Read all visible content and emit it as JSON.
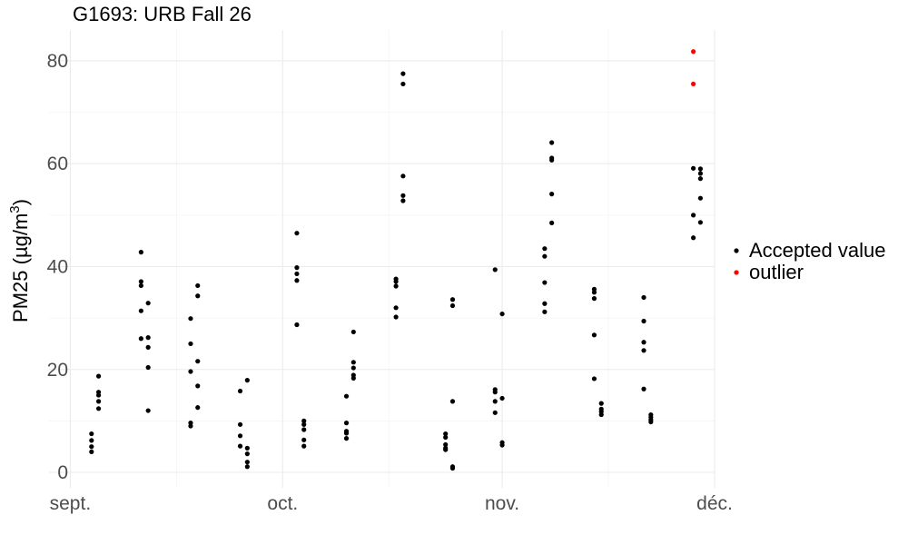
{
  "chart_data": {
    "type": "scatter",
    "title": "G1693: URB Fall 26",
    "ylabel": "PM25",
    "ylabel_unit": "(µg/m",
    "ylabel_unit_sup": "3",
    "ylabel_unit_close": ")",
    "xlabel": "",
    "x_ticks": [
      {
        "date": "2026-09-01",
        "label": "sept."
      },
      {
        "date": "2026-10-01",
        "label": "oct."
      },
      {
        "date": "2026-11-01",
        "label": "nov."
      },
      {
        "date": "2026-12-01",
        "label": "déc."
      }
    ],
    "xlim": [
      "2026-08-29",
      "2026-12-01"
    ],
    "ylim": [
      -3,
      86
    ],
    "y_ticks": [
      0,
      20,
      40,
      60,
      80
    ],
    "grid": true,
    "legend_position": "right",
    "legend": [
      {
        "label": "Accepted value",
        "color": "#000000"
      },
      {
        "label": "outlier",
        "color": "#ff0000"
      }
    ],
    "series": [
      {
        "name": "Accepted value",
        "color": "#000000",
        "points": [
          [
            "2026-09-04",
            7.5
          ],
          [
            "2026-09-04",
            6.2
          ],
          [
            "2026-09-04",
            5.0
          ],
          [
            "2026-09-04",
            4.0
          ],
          [
            "2026-09-05",
            18.7
          ],
          [
            "2026-09-05",
            15.6
          ],
          [
            "2026-09-05",
            15.0
          ],
          [
            "2026-09-05",
            13.8
          ],
          [
            "2026-09-05",
            12.4
          ],
          [
            "2026-09-11",
            42.8
          ],
          [
            "2026-09-11",
            37.1
          ],
          [
            "2026-09-11",
            36.3
          ],
          [
            "2026-09-11",
            31.4
          ],
          [
            "2026-09-11",
            26.0
          ],
          [
            "2026-09-12",
            32.9
          ],
          [
            "2026-09-12",
            26.2
          ],
          [
            "2026-09-12",
            24.3
          ],
          [
            "2026-09-12",
            20.4
          ],
          [
            "2026-09-12",
            12.0
          ],
          [
            "2026-09-18",
            29.9
          ],
          [
            "2026-09-18",
            25.0
          ],
          [
            "2026-09-18",
            19.6
          ],
          [
            "2026-09-18",
            9.6
          ],
          [
            "2026-09-18",
            9.0
          ],
          [
            "2026-09-19",
            36.3
          ],
          [
            "2026-09-19",
            34.3
          ],
          [
            "2026-09-19",
            21.6
          ],
          [
            "2026-09-19",
            16.8
          ],
          [
            "2026-09-19",
            12.6
          ],
          [
            "2026-09-25",
            15.8
          ],
          [
            "2026-09-25",
            9.3
          ],
          [
            "2026-09-25",
            7.1
          ],
          [
            "2026-09-25",
            5.1
          ],
          [
            "2026-09-26",
            17.9
          ],
          [
            "2026-09-26",
            4.7
          ],
          [
            "2026-09-26",
            3.6
          ],
          [
            "2026-09-26",
            2.0
          ],
          [
            "2026-09-26",
            1.1
          ],
          [
            "2026-10-03",
            46.5
          ],
          [
            "2026-10-03",
            39.8
          ],
          [
            "2026-10-03",
            38.6
          ],
          [
            "2026-10-03",
            37.3
          ],
          [
            "2026-10-03",
            28.7
          ],
          [
            "2026-10-04",
            10.0
          ],
          [
            "2026-10-04",
            9.3
          ],
          [
            "2026-10-04",
            8.3
          ],
          [
            "2026-10-04",
            6.3
          ],
          [
            "2026-10-04",
            5.1
          ],
          [
            "2026-10-10",
            14.8
          ],
          [
            "2026-10-10",
            9.6
          ],
          [
            "2026-10-10",
            8.0
          ],
          [
            "2026-10-10",
            7.6
          ],
          [
            "2026-10-10",
            6.6
          ],
          [
            "2026-10-11",
            27.3
          ],
          [
            "2026-10-11",
            21.4
          ],
          [
            "2026-10-11",
            20.3
          ],
          [
            "2026-10-11",
            18.9
          ],
          [
            "2026-10-11",
            18.3
          ],
          [
            "2026-10-17",
            37.6
          ],
          [
            "2026-10-17",
            37.1
          ],
          [
            "2026-10-17",
            36.2
          ],
          [
            "2026-10-17",
            32.0
          ],
          [
            "2026-10-17",
            30.2
          ],
          [
            "2026-10-18",
            77.5
          ],
          [
            "2026-10-18",
            75.5
          ],
          [
            "2026-10-18",
            57.6
          ],
          [
            "2026-10-18",
            53.8
          ],
          [
            "2026-10-18",
            52.8
          ],
          [
            "2026-10-24",
            7.5
          ],
          [
            "2026-10-24",
            6.8
          ],
          [
            "2026-10-24",
            5.4
          ],
          [
            "2026-10-24",
            4.7
          ],
          [
            "2026-10-24",
            4.4
          ],
          [
            "2026-10-25",
            33.6
          ],
          [
            "2026-10-25",
            32.4
          ],
          [
            "2026-10-25",
            13.8
          ],
          [
            "2026-10-25",
            1.1
          ],
          [
            "2026-10-25",
            0.8
          ],
          [
            "2026-10-31",
            39.4
          ],
          [
            "2026-10-31",
            16.1
          ],
          [
            "2026-10-31",
            15.6
          ],
          [
            "2026-10-31",
            13.8
          ],
          [
            "2026-10-31",
            11.6
          ],
          [
            "2026-11-01",
            30.8
          ],
          [
            "2026-11-01",
            14.4
          ],
          [
            "2026-11-01",
            5.8
          ],
          [
            "2026-11-01",
            5.3
          ],
          [
            "2026-11-07",
            43.5
          ],
          [
            "2026-11-07",
            42.0
          ],
          [
            "2026-11-07",
            36.9
          ],
          [
            "2026-11-07",
            32.8
          ],
          [
            "2026-11-07",
            31.2
          ],
          [
            "2026-11-08",
            64.1
          ],
          [
            "2026-11-08",
            61.1
          ],
          [
            "2026-11-08",
            60.7
          ],
          [
            "2026-11-08",
            54.1
          ],
          [
            "2026-11-08",
            48.5
          ],
          [
            "2026-11-14",
            35.6
          ],
          [
            "2026-11-14",
            35.0
          ],
          [
            "2026-11-14",
            33.8
          ],
          [
            "2026-11-14",
            26.7
          ],
          [
            "2026-11-14",
            18.2
          ],
          [
            "2026-11-15",
            13.4
          ],
          [
            "2026-11-15",
            12.3
          ],
          [
            "2026-11-15",
            11.8
          ],
          [
            "2026-11-15",
            11.2
          ],
          [
            "2026-11-21",
            34.0
          ],
          [
            "2026-11-21",
            29.4
          ],
          [
            "2026-11-21",
            25.3
          ],
          [
            "2026-11-21",
            23.7
          ],
          [
            "2026-11-21",
            16.2
          ],
          [
            "2026-11-22",
            11.2
          ],
          [
            "2026-11-22",
            10.7
          ],
          [
            "2026-11-22",
            10.2
          ],
          [
            "2026-11-22",
            9.8
          ],
          [
            "2026-11-28",
            59.1
          ],
          [
            "2026-11-28",
            50.0
          ],
          [
            "2026-11-28",
            45.6
          ],
          [
            "2026-11-29",
            59.0
          ],
          [
            "2026-11-29",
            58.1
          ],
          [
            "2026-11-29",
            57.1
          ],
          [
            "2026-11-29",
            53.3
          ],
          [
            "2026-11-29",
            48.6
          ]
        ]
      },
      {
        "name": "outlier",
        "color": "#ff0000",
        "points": [
          [
            "2026-11-28",
            81.8
          ],
          [
            "2026-11-28",
            75.5
          ]
        ]
      }
    ]
  }
}
